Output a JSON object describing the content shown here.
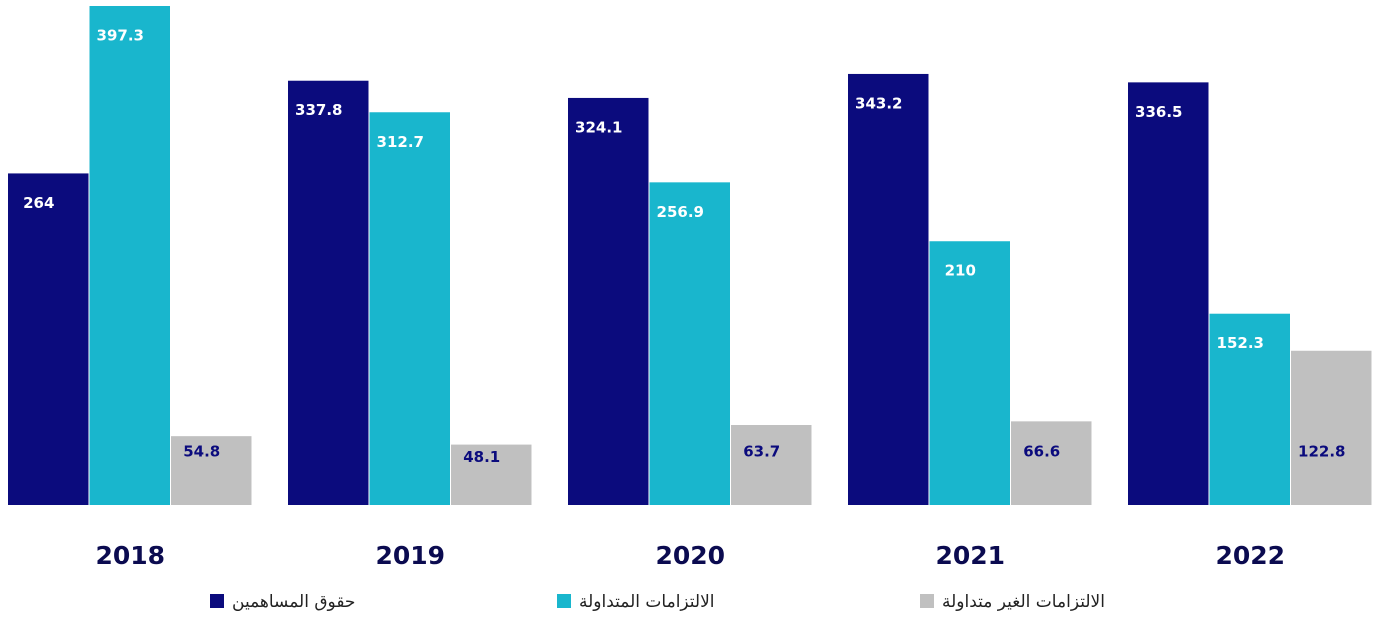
{
  "chart_data": {
    "type": "bar",
    "categories": [
      "2018",
      "2019",
      "2020",
      "2021",
      "2022"
    ],
    "series": [
      {
        "name": "حقوق المساهمين",
        "color": "#0b0b7d",
        "values": [
          264,
          337.8,
          324.1,
          343.2,
          336.5
        ]
      },
      {
        "name": "الالتزامات  المتداولة",
        "color": "#19b6cd",
        "values": [
          397.3,
          312.7,
          256.9,
          210,
          152.3
        ]
      },
      {
        "name": "الالتزامات    الغير متداولة",
        "color": "#c0c0c0",
        "values": [
          54.8,
          48.1,
          63.7,
          66.6,
          122.8
        ]
      }
    ],
    "grid": false,
    "legend": "bottom"
  }
}
